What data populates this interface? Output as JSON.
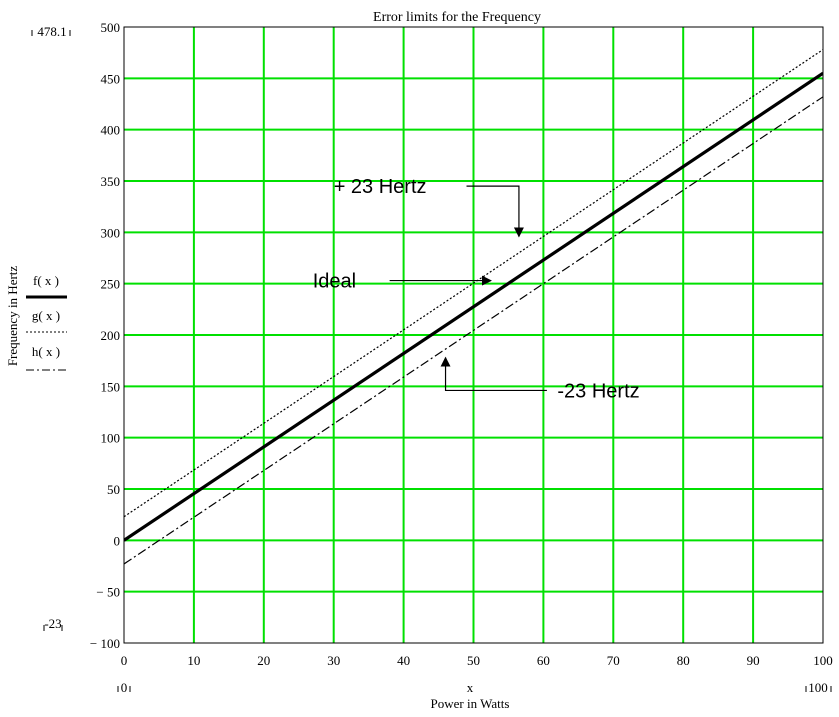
{
  "chart_data": {
    "type": "line",
    "title": "Error limits for the Frequency",
    "xlabel_var": "x",
    "xlabel": "Power in Watts",
    "ylabel": "Frequency in Hertz",
    "xlim": [
      0,
      100
    ],
    "ylim": [
      -100,
      500
    ],
    "x_ticks": [
      0,
      10,
      20,
      30,
      40,
      50,
      60,
      70,
      80,
      90,
      100
    ],
    "y_ticks": [
      -100,
      -50,
      0,
      50,
      100,
      150,
      200,
      250,
      300,
      350,
      400,
      450,
      500
    ],
    "grid": true,
    "grid_color": "#00e000",
    "range_markers": {
      "y_top": "478.1",
      "y_bottom": "-23",
      "x_left": "0",
      "x_right": "100"
    },
    "legend_placement": "left",
    "series": [
      {
        "name": "f( x )",
        "style": "thick solid",
        "x": [
          0,
          100
        ],
        "y": [
          0,
          455
        ]
      },
      {
        "name": "g( x )",
        "style": "dotted",
        "x": [
          0,
          100
        ],
        "y": [
          23,
          478
        ]
      },
      {
        "name": "h( x )",
        "style": "dash-dot",
        "x": [
          0,
          100
        ],
        "y": [
          -23,
          432
        ]
      }
    ],
    "annotations": [
      {
        "text": "+ 23 Hertz",
        "x": 30,
        "y": 345,
        "arrow_path": [
          [
            49,
            345
          ],
          [
            56.5,
            345
          ],
          [
            56.5,
            296
          ]
        ]
      },
      {
        "text": "Ideal",
        "x": 27,
        "y": 253,
        "arrow_path": [
          [
            38,
            253
          ],
          [
            52.5,
            253
          ]
        ]
      },
      {
        "text": "-23 Hertz",
        "x": 62,
        "y": 146,
        "arrow_path": [
          [
            60.5,
            146
          ],
          [
            46,
            146
          ],
          [
            46,
            178
          ]
        ]
      }
    ]
  }
}
